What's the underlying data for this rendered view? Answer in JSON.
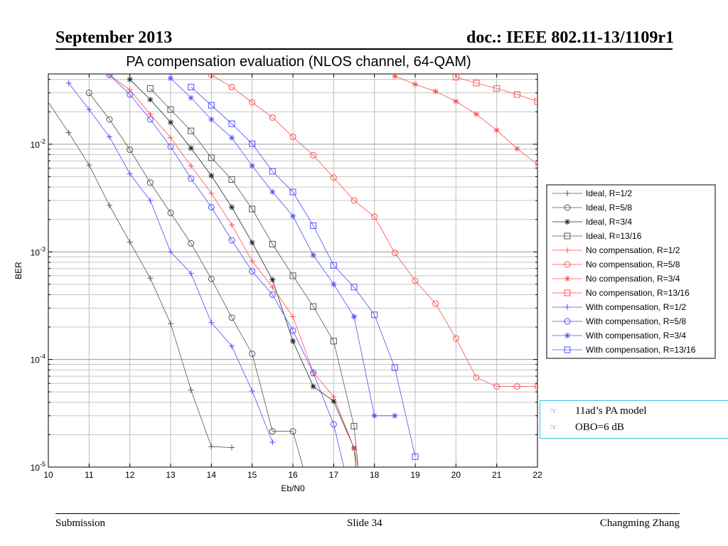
{
  "header": {
    "date": "September 2013",
    "doc": "doc.: IEEE 802.11-13/1109r1"
  },
  "footer": {
    "left": "Submission",
    "center": "Slide 34",
    "right": "Changming Zhang"
  },
  "annotations": [
    "11ad’s PA model",
    "OBO=6 dB"
  ],
  "chart_data": {
    "type": "line",
    "title": "PA compensation evaluation (NLOS channel, 64-QAM)",
    "xlabel": "Eb/N0",
    "ylabel": "BER",
    "xlim": [
      10,
      22
    ],
    "ylim": [
      1e-05,
      0.045
    ],
    "yscale": "log",
    "grid": true,
    "legend_position": "right",
    "x_ticks": [
      "10",
      "11",
      "12",
      "13",
      "14",
      "15",
      "16",
      "17",
      "18",
      "19",
      "20",
      "21",
      "22"
    ],
    "y_ticks": [
      {
        "value": 0.01,
        "base": "10",
        "exp": "-2"
      },
      {
        "value": 0.001,
        "base": "10",
        "exp": "-3"
      },
      {
        "value": 0.0001,
        "base": "10",
        "exp": "-4"
      },
      {
        "value": 1e-05,
        "base": "10",
        "exp": "-5"
      }
    ],
    "series": [
      {
        "name": "Ideal, R=1/2",
        "color": "#555555",
        "marker": "plus",
        "points": [
          [
            9.9,
            0.028
          ],
          [
            10.5,
            0.0128
          ],
          [
            11,
            0.0064
          ],
          [
            11.5,
            0.0027
          ],
          [
            12,
            0.00123
          ],
          [
            12.5,
            0.00057
          ],
          [
            13,
            0.000215
          ],
          [
            13.5,
            5.2e-05
          ],
          [
            14,
            1.55e-05
          ],
          [
            14.5,
            1.52e-05
          ]
        ]
      },
      {
        "name": "Ideal, R=5/8",
        "color": "#555555",
        "marker": "circle",
        "points": [
          [
            11,
            0.03
          ],
          [
            11.5,
            0.017
          ],
          [
            12,
            0.0089
          ],
          [
            12.5,
            0.0044
          ],
          [
            13,
            0.0023
          ],
          [
            13.5,
            0.0012
          ],
          [
            14,
            0.00056
          ],
          [
            14.5,
            0.000245
          ],
          [
            15,
            0.000113
          ],
          [
            15.5,
            2.15e-05
          ],
          [
            16,
            2.15e-05
          ],
          [
            16.25,
            1e-05
          ]
        ]
      },
      {
        "name": "Ideal, R=3/4",
        "color": "#222222",
        "marker": "star",
        "points": [
          [
            12,
            0.04
          ],
          [
            12.5,
            0.026
          ],
          [
            13,
            0.016
          ],
          [
            13.5,
            0.0092
          ],
          [
            14,
            0.0051
          ],
          [
            14.5,
            0.0026
          ],
          [
            15,
            0.00122
          ],
          [
            15.5,
            0.00055
          ],
          [
            16,
            0.000148
          ],
          [
            16.5,
            5.6e-05
          ],
          [
            17,
            4.1e-05
          ],
          [
            17.5,
            1.5e-05
          ],
          [
            17.55,
            1e-05
          ]
        ]
      },
      {
        "name": "Ideal, R=13/16",
        "color": "#555555",
        "marker": "square",
        "points": [
          [
            12.5,
            0.033
          ],
          [
            13,
            0.021
          ],
          [
            13.5,
            0.0133
          ],
          [
            14,
            0.0075
          ],
          [
            14.5,
            0.0047
          ],
          [
            15,
            0.0025
          ],
          [
            15.5,
            0.00118
          ],
          [
            16,
            0.0006
          ],
          [
            16.5,
            0.00031
          ],
          [
            17,
            0.000148
          ],
          [
            17.5,
            2.4e-05
          ],
          [
            17.6,
            1e-05
          ]
        ]
      },
      {
        "name": "No compensation, R=1/2",
        "color": "#ff4d4d",
        "marker": "plus",
        "points": [
          [
            11.5,
            0.044
          ],
          [
            12,
            0.032
          ],
          [
            12.5,
            0.019
          ],
          [
            13,
            0.0115
          ],
          [
            13.5,
            0.0063
          ],
          [
            14,
            0.0035
          ],
          [
            14.5,
            0.00178
          ],
          [
            15,
            0.00082
          ],
          [
            15.5,
            0.00047
          ],
          [
            16,
            0.00025
          ],
          [
            16.5,
            7.6e-05
          ],
          [
            17,
            4.5e-05
          ],
          [
            17.5,
            1.5e-05
          ],
          [
            17.6,
            1e-05
          ]
        ]
      },
      {
        "name": "No compensation, R=5/8",
        "color": "#ff4d4d",
        "marker": "circle",
        "points": [
          [
            14,
            0.044
          ],
          [
            14.5,
            0.034
          ],
          [
            15,
            0.0245
          ],
          [
            15.5,
            0.0177
          ],
          [
            16,
            0.0117
          ],
          [
            16.5,
            0.0079
          ],
          [
            17,
            0.0049
          ],
          [
            17.5,
            0.003
          ],
          [
            18,
            0.00212
          ],
          [
            18.5,
            0.00098
          ],
          [
            19,
            0.00054
          ],
          [
            19.5,
            0.00033
          ],
          [
            20,
            0.000157
          ],
          [
            20.5,
            6.8e-05
          ],
          [
            21,
            5.6e-05
          ],
          [
            21.5,
            5.6e-05
          ],
          [
            22,
            5.6e-05
          ]
        ]
      },
      {
        "name": "No compensation, R=3/4",
        "color": "#ff4d4d",
        "marker": "star",
        "points": [
          [
            18.5,
            0.043
          ],
          [
            19,
            0.036
          ],
          [
            19.5,
            0.031
          ],
          [
            20,
            0.025
          ],
          [
            20.5,
            0.019
          ],
          [
            21,
            0.0135
          ],
          [
            21.5,
            0.0091
          ],
          [
            22,
            0.0065
          ]
        ]
      },
      {
        "name": "No compensation, R=13/16",
        "color": "#ff4d4d",
        "marker": "square",
        "points": [
          [
            20,
            0.042
          ],
          [
            20.5,
            0.037
          ],
          [
            21,
            0.033
          ],
          [
            21.5,
            0.029
          ],
          [
            22,
            0.025
          ]
        ]
      },
      {
        "name": "With compensation, R=1/2",
        "color": "#4d4dff",
        "marker": "plus",
        "points": [
          [
            10.5,
            0.037
          ],
          [
            11,
            0.021
          ],
          [
            11.5,
            0.0117
          ],
          [
            12,
            0.0053
          ],
          [
            12.5,
            0.003
          ],
          [
            13,
            0.001
          ],
          [
            13.5,
            0.00063
          ],
          [
            14,
            0.00022
          ],
          [
            14.5,
            0.000133
          ],
          [
            15,
            5.1e-05
          ],
          [
            15.5,
            1.7e-05
          ]
        ]
      },
      {
        "name": "With compensation, R=5/8",
        "color": "#4d4dff",
        "marker": "circle",
        "points": [
          [
            11.5,
            0.044
          ],
          [
            12,
            0.029
          ],
          [
            12.5,
            0.017
          ],
          [
            13,
            0.0095
          ],
          [
            13.5,
            0.0048
          ],
          [
            14,
            0.0026
          ],
          [
            14.5,
            0.00128
          ],
          [
            15,
            0.00066
          ],
          [
            15.5,
            0.0004
          ],
          [
            16,
            0.000185
          ],
          [
            16.5,
            7.5e-05
          ],
          [
            17,
            2.5e-05
          ],
          [
            17.25,
            1e-05
          ]
        ]
      },
      {
        "name": "With compensation, R=3/4",
        "color": "#4d4dff",
        "marker": "star",
        "points": [
          [
            13,
            0.041
          ],
          [
            13.5,
            0.027
          ],
          [
            14,
            0.017
          ],
          [
            14.5,
            0.0115
          ],
          [
            15,
            0.0063
          ],
          [
            15.5,
            0.0036
          ],
          [
            16,
            0.00215
          ],
          [
            16.5,
            0.00093
          ],
          [
            17,
            0.0005
          ],
          [
            17.5,
            0.00025
          ],
          [
            18,
            3e-05
          ],
          [
            18.5,
            3e-05
          ]
        ]
      },
      {
        "name": "With compensation, R=13/16",
        "color": "#4d4dff",
        "marker": "square",
        "points": [
          [
            13.5,
            0.034
          ],
          [
            14,
            0.023
          ],
          [
            14.5,
            0.0155
          ],
          [
            15,
            0.0101
          ],
          [
            15.5,
            0.0056
          ],
          [
            16,
            0.0036
          ],
          [
            16.5,
            0.00175
          ],
          [
            17,
            0.00075
          ],
          [
            17.5,
            0.00047
          ],
          [
            18,
            0.00026
          ],
          [
            18.5,
            8.4e-05
          ],
          [
            19,
            1.25e-05
          ]
        ]
      }
    ]
  }
}
